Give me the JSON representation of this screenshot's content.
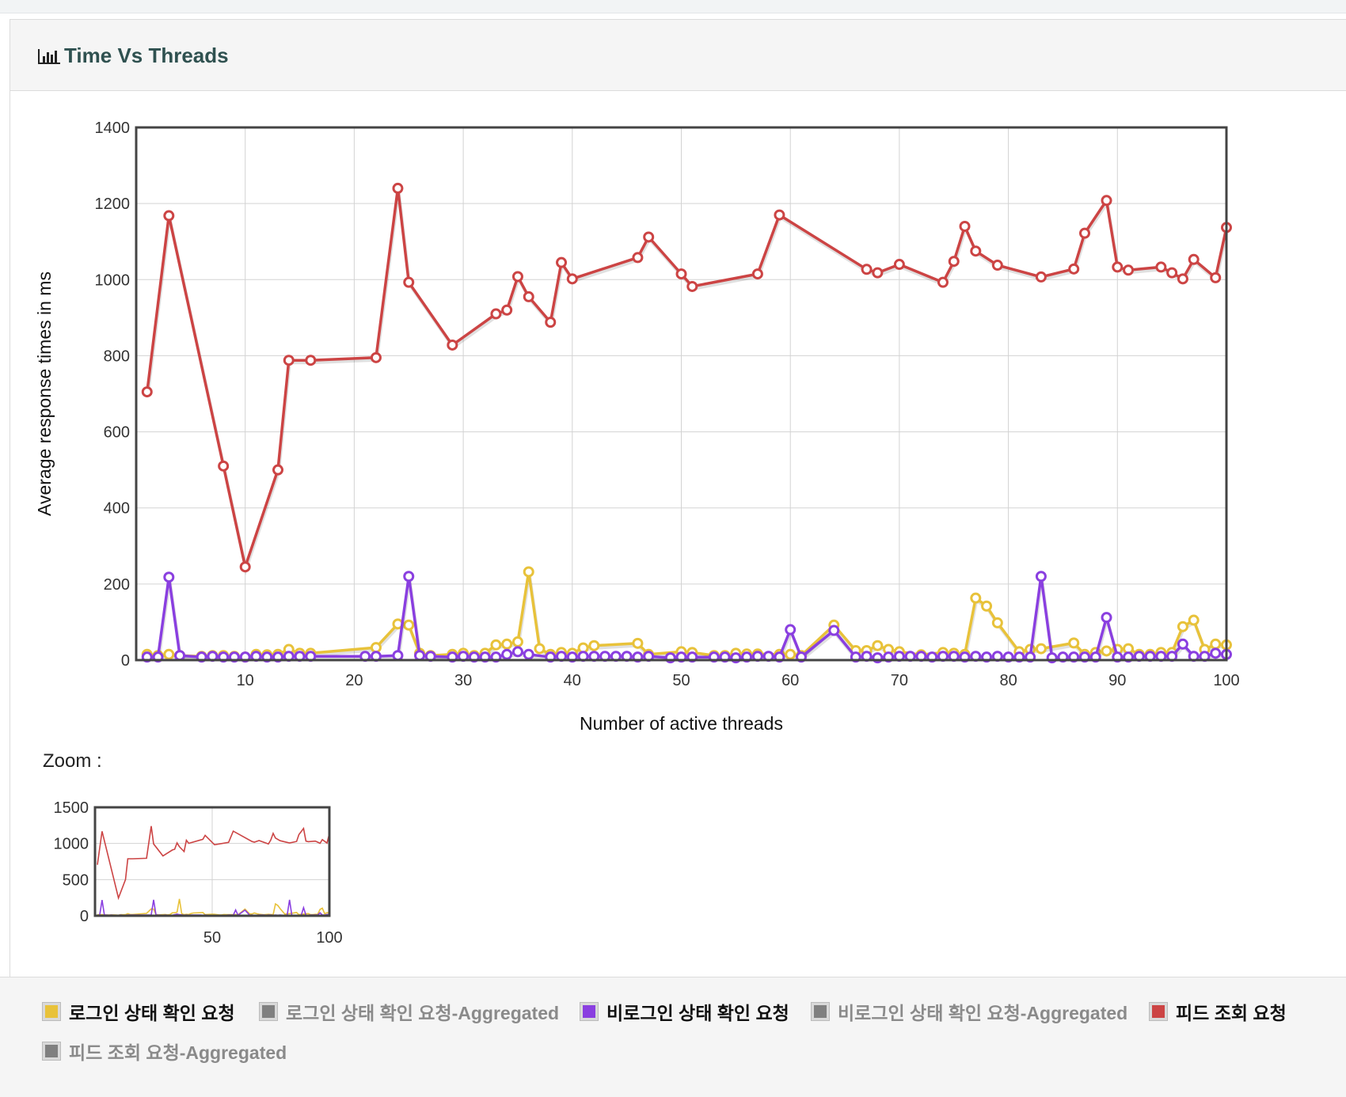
{
  "panel": {
    "title": "Time Vs Threads"
  },
  "zoom": {
    "label": "Zoom :"
  },
  "chart_data": {
    "type": "line",
    "title": "",
    "xlabel": "Number of active threads",
    "ylabel": "Average response times in ms",
    "xlim": [
      0,
      100
    ],
    "ylim": [
      0,
      1400
    ],
    "xticks": [
      10,
      20,
      30,
      40,
      50,
      60,
      70,
      80,
      90,
      100
    ],
    "yticks": [
      0,
      200,
      400,
      600,
      800,
      1000,
      1200,
      1400
    ],
    "grid": true,
    "legend_position": "bottom",
    "series": [
      {
        "name": "로그인 상태 확인 요청",
        "color": "#e8c23a",
        "points": [
          [
            1,
            15
          ],
          [
            2,
            12
          ],
          [
            3,
            15
          ],
          [
            4,
            12
          ],
          [
            6,
            10
          ],
          [
            7,
            12
          ],
          [
            8,
            12
          ],
          [
            9,
            10
          ],
          [
            10,
            8
          ],
          [
            11,
            15
          ],
          [
            12,
            14
          ],
          [
            13,
            15
          ],
          [
            14,
            28
          ],
          [
            15,
            18
          ],
          [
            16,
            18
          ],
          [
            22,
            33
          ],
          [
            24,
            95
          ],
          [
            25,
            92
          ],
          [
            26,
            18
          ],
          [
            27,
            12
          ],
          [
            29,
            15
          ],
          [
            30,
            18
          ],
          [
            31,
            12
          ],
          [
            32,
            18
          ],
          [
            33,
            40
          ],
          [
            34,
            42
          ],
          [
            35,
            48
          ],
          [
            36,
            232
          ],
          [
            37,
            30
          ],
          [
            38,
            15
          ],
          [
            39,
            20
          ],
          [
            40,
            18
          ],
          [
            41,
            32
          ],
          [
            42,
            38
          ],
          [
            46,
            44
          ],
          [
            47,
            15
          ],
          [
            50,
            22
          ],
          [
            51,
            20
          ],
          [
            53,
            12
          ],
          [
            54,
            12
          ],
          [
            55,
            18
          ],
          [
            56,
            16
          ],
          [
            57,
            16
          ],
          [
            59,
            15
          ],
          [
            60,
            15
          ],
          [
            61,
            12
          ],
          [
            64,
            92
          ],
          [
            66,
            25
          ],
          [
            67,
            25
          ],
          [
            68,
            38
          ],
          [
            69,
            28
          ],
          [
            70,
            22
          ],
          [
            72,
            14
          ],
          [
            74,
            20
          ],
          [
            75,
            18
          ],
          [
            76,
            15
          ],
          [
            77,
            163
          ],
          [
            78,
            142
          ],
          [
            79,
            98
          ],
          [
            81,
            22
          ],
          [
            82,
            28
          ],
          [
            83,
            30
          ],
          [
            86,
            45
          ],
          [
            87,
            15
          ],
          [
            88,
            20
          ],
          [
            89,
            24
          ],
          [
            90,
            28
          ],
          [
            91,
            30
          ],
          [
            92,
            15
          ],
          [
            93,
            15
          ],
          [
            94,
            20
          ],
          [
            95,
            20
          ],
          [
            96,
            88
          ],
          [
            97,
            105
          ],
          [
            98,
            28
          ],
          [
            99,
            42
          ],
          [
            100,
            40
          ]
        ]
      },
      {
        "name": "로그인 상태 확인 요청-Aggregated",
        "color": "#888888",
        "points": []
      },
      {
        "name": "비로그인 상태 확인 요청",
        "color": "#8a3fe0",
        "points": [
          [
            1,
            8
          ],
          [
            2,
            8
          ],
          [
            3,
            218
          ],
          [
            4,
            12
          ],
          [
            6,
            8
          ],
          [
            7,
            10
          ],
          [
            8,
            8
          ],
          [
            9,
            8
          ],
          [
            10,
            8
          ],
          [
            11,
            10
          ],
          [
            12,
            8
          ],
          [
            13,
            8
          ],
          [
            14,
            10
          ],
          [
            15,
            10
          ],
          [
            16,
            10
          ],
          [
            21,
            10
          ],
          [
            22,
            10
          ],
          [
            24,
            12
          ],
          [
            25,
            220
          ],
          [
            26,
            12
          ],
          [
            27,
            10
          ],
          [
            29,
            8
          ],
          [
            30,
            10
          ],
          [
            31,
            8
          ],
          [
            32,
            8
          ],
          [
            33,
            8
          ],
          [
            34,
            15
          ],
          [
            35,
            22
          ],
          [
            36,
            15
          ],
          [
            38,
            8
          ],
          [
            39,
            10
          ],
          [
            40,
            8
          ],
          [
            41,
            10
          ],
          [
            42,
            10
          ],
          [
            43,
            10
          ],
          [
            44,
            10
          ],
          [
            45,
            10
          ],
          [
            46,
            8
          ],
          [
            47,
            10
          ],
          [
            49,
            6
          ],
          [
            50,
            8
          ],
          [
            51,
            8
          ],
          [
            53,
            8
          ],
          [
            54,
            8
          ],
          [
            55,
            6
          ],
          [
            56,
            8
          ],
          [
            57,
            10
          ],
          [
            58,
            10
          ],
          [
            59,
            8
          ],
          [
            60,
            80
          ],
          [
            61,
            8
          ],
          [
            64,
            78
          ],
          [
            66,
            8
          ],
          [
            67,
            10
          ],
          [
            68,
            6
          ],
          [
            69,
            8
          ],
          [
            70,
            10
          ],
          [
            71,
            10
          ],
          [
            72,
            10
          ],
          [
            73,
            8
          ],
          [
            74,
            10
          ],
          [
            75,
            10
          ],
          [
            76,
            8
          ],
          [
            77,
            10
          ],
          [
            78,
            8
          ],
          [
            79,
            10
          ],
          [
            80,
            8
          ],
          [
            81,
            8
          ],
          [
            82,
            8
          ],
          [
            83,
            220
          ],
          [
            84,
            6
          ],
          [
            85,
            8
          ],
          [
            86,
            8
          ],
          [
            87,
            8
          ],
          [
            88,
            8
          ],
          [
            89,
            112
          ],
          [
            90,
            8
          ],
          [
            91,
            8
          ],
          [
            92,
            10
          ],
          [
            93,
            10
          ],
          [
            94,
            10
          ],
          [
            95,
            10
          ],
          [
            96,
            42
          ],
          [
            97,
            10
          ],
          [
            98,
            10
          ],
          [
            99,
            18
          ],
          [
            100,
            15
          ]
        ]
      },
      {
        "name": "비로그인 상태 확인 요청-Aggregated",
        "color": "#888888",
        "points": []
      },
      {
        "name": "피드 조회 요청",
        "color": "#cc4444",
        "points": [
          [
            1,
            705
          ],
          [
            3,
            1168
          ],
          [
            8,
            510
          ],
          [
            10,
            245
          ],
          [
            13,
            500
          ],
          [
            14,
            788
          ],
          [
            16,
            788
          ],
          [
            22,
            795
          ],
          [
            24,
            1240
          ],
          [
            25,
            993
          ],
          [
            29,
            828
          ],
          [
            33,
            910
          ],
          [
            34,
            920
          ],
          [
            35,
            1008
          ],
          [
            36,
            955
          ],
          [
            38,
            888
          ],
          [
            39,
            1045
          ],
          [
            40,
            1002
          ],
          [
            46,
            1058
          ],
          [
            47,
            1112
          ],
          [
            50,
            1015
          ],
          [
            51,
            982
          ],
          [
            57,
            1015
          ],
          [
            59,
            1170
          ],
          [
            67,
            1027
          ],
          [
            68,
            1018
          ],
          [
            70,
            1040
          ],
          [
            74,
            993
          ],
          [
            75,
            1048
          ],
          [
            76,
            1140
          ],
          [
            77,
            1075
          ],
          [
            79,
            1038
          ],
          [
            83,
            1007
          ],
          [
            86,
            1028
          ],
          [
            87,
            1122
          ],
          [
            89,
            1208
          ],
          [
            90,
            1033
          ],
          [
            91,
            1025
          ],
          [
            94,
            1033
          ],
          [
            95,
            1018
          ],
          [
            96,
            1002
          ],
          [
            97,
            1053
          ],
          [
            99,
            1005
          ],
          [
            100,
            1137
          ]
        ]
      },
      {
        "name": "피드 조회 요청-Aggregated",
        "color": "#888888",
        "points": []
      }
    ],
    "zoom_chart": {
      "type": "line",
      "xlim": [
        0,
        100
      ],
      "ylim": [
        0,
        1500
      ],
      "xticks": [
        50,
        100
      ],
      "yticks": [
        0,
        500,
        1000,
        1500
      ]
    }
  },
  "legend": {
    "items": [
      {
        "label": "로그인 상태 확인 요청",
        "color": "#e8c23a",
        "enabled": true
      },
      {
        "label": "로그인 상태 확인 요청-Aggregated",
        "color": "#808080",
        "enabled": false
      },
      {
        "label": "비로그인 상태 확인 요청",
        "color": "#8a3fe0",
        "enabled": true
      },
      {
        "label": "비로그인 상태 확인 요청-Aggregated",
        "color": "#808080",
        "enabled": false
      },
      {
        "label": "피드 조회 요청",
        "color": "#cc4444",
        "enabled": true
      },
      {
        "label": "피드 조회 요청-Aggregated",
        "color": "#808080",
        "enabled": false
      }
    ]
  }
}
